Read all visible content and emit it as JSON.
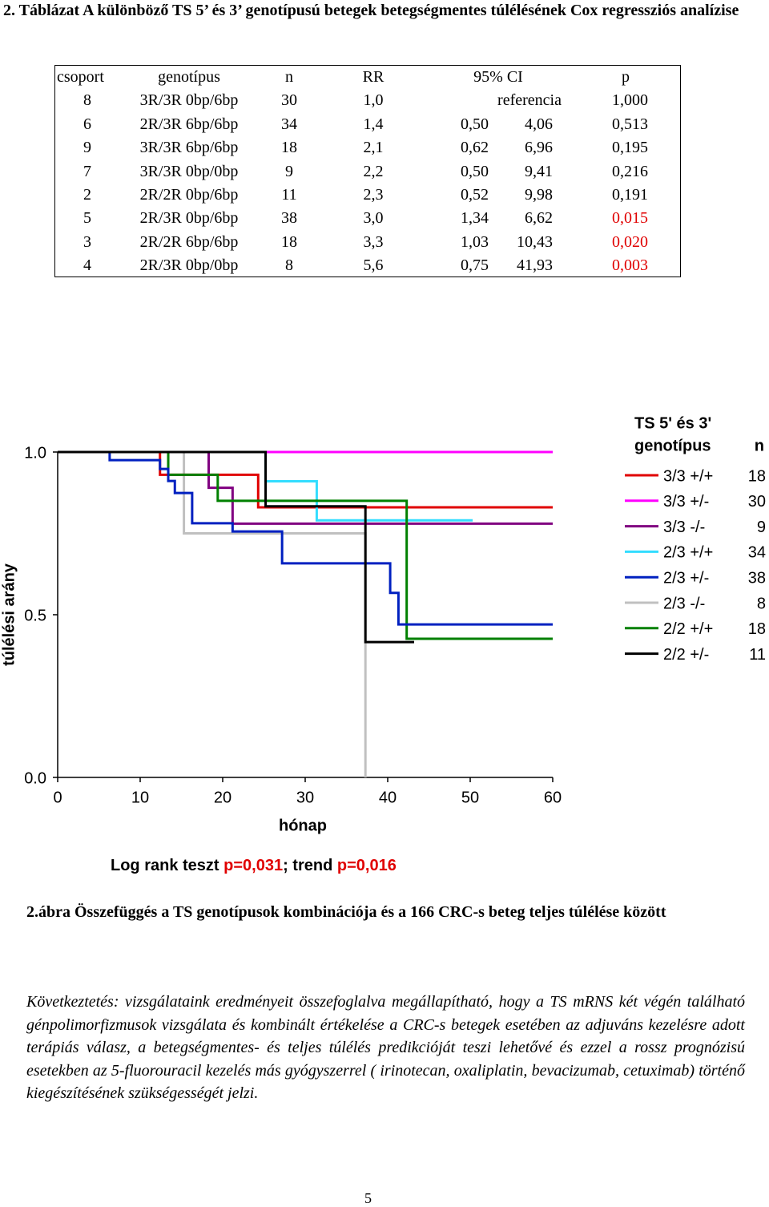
{
  "header": {
    "title": "2. Táblázat A különböző TS 5’ és 3’ genotípusú betegek betegségmentes túlélésének Cox regressziós analízise"
  },
  "table": {
    "columns": [
      "csoport",
      "genotípus",
      "n",
      "RR",
      "95% CI",
      "p"
    ],
    "rows": [
      [
        "8",
        "3R/3R 0bp/6bp",
        "30",
        "1,0",
        "referencia",
        "",
        "1,000"
      ],
      [
        "6",
        "2R/3R 6bp/6bp",
        "34",
        "1,4",
        "0,50",
        "4,06",
        "0,513"
      ],
      [
        "9",
        "3R/3R 6bp/6bp",
        "18",
        "2,1",
        "0,62",
        "6,96",
        "0,195"
      ],
      [
        "7",
        "3R/3R 0bp/0bp",
        "9",
        "2,2",
        "0,50",
        "9,41",
        "0,216"
      ],
      [
        "2",
        "2R/2R 0bp/6bp",
        "11",
        "2,3",
        "0,52",
        "9,98",
        "0,191"
      ],
      [
        "5",
        "2R/3R 0bp/6bp",
        "38",
        "3,0",
        "1,34",
        "6,62",
        "0,015"
      ],
      [
        "3",
        "2R/2R 6bp/6bp",
        "18",
        "3,3",
        "1,03",
        "10,43",
        "0,020"
      ],
      [
        "4",
        "2R/3R 0bp/0bp",
        "8",
        "5,6",
        "0,75",
        "41,93",
        "0,003"
      ]
    ],
    "p_colors": [
      "#000000",
      "#000000",
      "#000000",
      "#000000",
      "#000000",
      "#e00000",
      "#e00000",
      "#e00000"
    ]
  },
  "chart_data": {
    "type": "step",
    "y_label": "túlélési arány",
    "x_label": "hónap",
    "legend_title": [
      "TS 5' és 3'",
      "genotípus"
    ],
    "legend_n_header": "n",
    "xlim": [
      0,
      60
    ],
    "xticks": [
      0,
      10,
      20,
      30,
      40,
      50,
      60
    ],
    "ylim": [
      0,
      1
    ],
    "yticks": [
      {
        "value": 0,
        "label": "0.0"
      },
      {
        "value": 0.5,
        "label": "0.5"
      },
      {
        "value": 1,
        "label": "1.0"
      }
    ],
    "series": [
      {
        "name": "3/3 +/+",
        "n": 18,
        "color": "#e00000",
        "x": [
          0,
          12.4,
          24.3,
          60
        ],
        "values": [
          1,
          0.93,
          0.83,
          0.83
        ]
      },
      {
        "name": "3/3 +/-",
        "n": 30,
        "color": "#ff00ff",
        "x": [
          0,
          60
        ],
        "values": [
          1,
          1
        ]
      },
      {
        "name": "3/3 -/-",
        "n": 9,
        "color": "#800080",
        "x": [
          0,
          18.3,
          21.2,
          60
        ],
        "values": [
          1,
          0.89,
          0.78,
          0.78
        ]
      },
      {
        "name": "2/3 +/+",
        "n": 34,
        "color": "#33ddff",
        "x": [
          0,
          25.2,
          31.4,
          50.3
        ],
        "values": [
          1,
          0.91,
          0.79,
          0.79
        ]
      },
      {
        "name": "2/3 +/-",
        "n": 38,
        "color": "#0020c0",
        "x": [
          0,
          6.3,
          12.4,
          13.4,
          14.2,
          16.3,
          21.2,
          27.2,
          40.3,
          41.3,
          60
        ],
        "values": [
          1,
          0.975,
          0.948,
          0.911,
          0.874,
          0.781,
          0.756,
          0.658,
          0.567,
          0.47,
          0.47
        ]
      },
      {
        "name": "2/3 -/-",
        "n": 8,
        "color": "#c0c0c0",
        "x": [
          0,
          15.3,
          37.3
        ],
        "values": [
          1,
          0.75,
          0
        ]
      },
      {
        "name": "2/2 +/+",
        "n": 18,
        "color": "#008000",
        "x": [
          0,
          13.4,
          19.4,
          42.3,
          60
        ],
        "values": [
          1,
          0.93,
          0.85,
          0.426,
          0.426
        ]
      },
      {
        "name": "2/2 +/-",
        "n": 11,
        "color": "#000000",
        "x": [
          0,
          25.2,
          37.3,
          43.2
        ],
        "values": [
          1,
          0.833,
          0.416,
          0.416
        ]
      }
    ],
    "annotation": {
      "parts": [
        "Log rank teszt ",
        "p=0,031",
        "; trend ",
        "p=0,016"
      ],
      "colors": [
        "#000000",
        "#e00000",
        "#000000",
        "#e00000"
      ]
    }
  },
  "caption": "2.ábra Összefüggés a  TS genotípusok kombinációja és a 166 CRC-s beteg teljes túlélése között",
  "conclusion": "Következtetés: vizsgálataink eredményeit összefoglalva megállapítható, hogy a TS mRNS két végén található génpolimorfizmusok  vizsgálata és kombinált értékelése a CRC-s betegek esetében az adjuváns kezelésre adott terápiás válasz, a betegségmentes- és teljes túlélés predikcióját teszi lehetővé és ezzel a rossz prognózisú esetekben az 5-fluorouracil kezelés más gyógyszerrel ( irinotecan, oxaliplatin, bevacizumab, cetuximab) történő kiegészítésének szükségességét jelzi.",
  "page_number": "5"
}
